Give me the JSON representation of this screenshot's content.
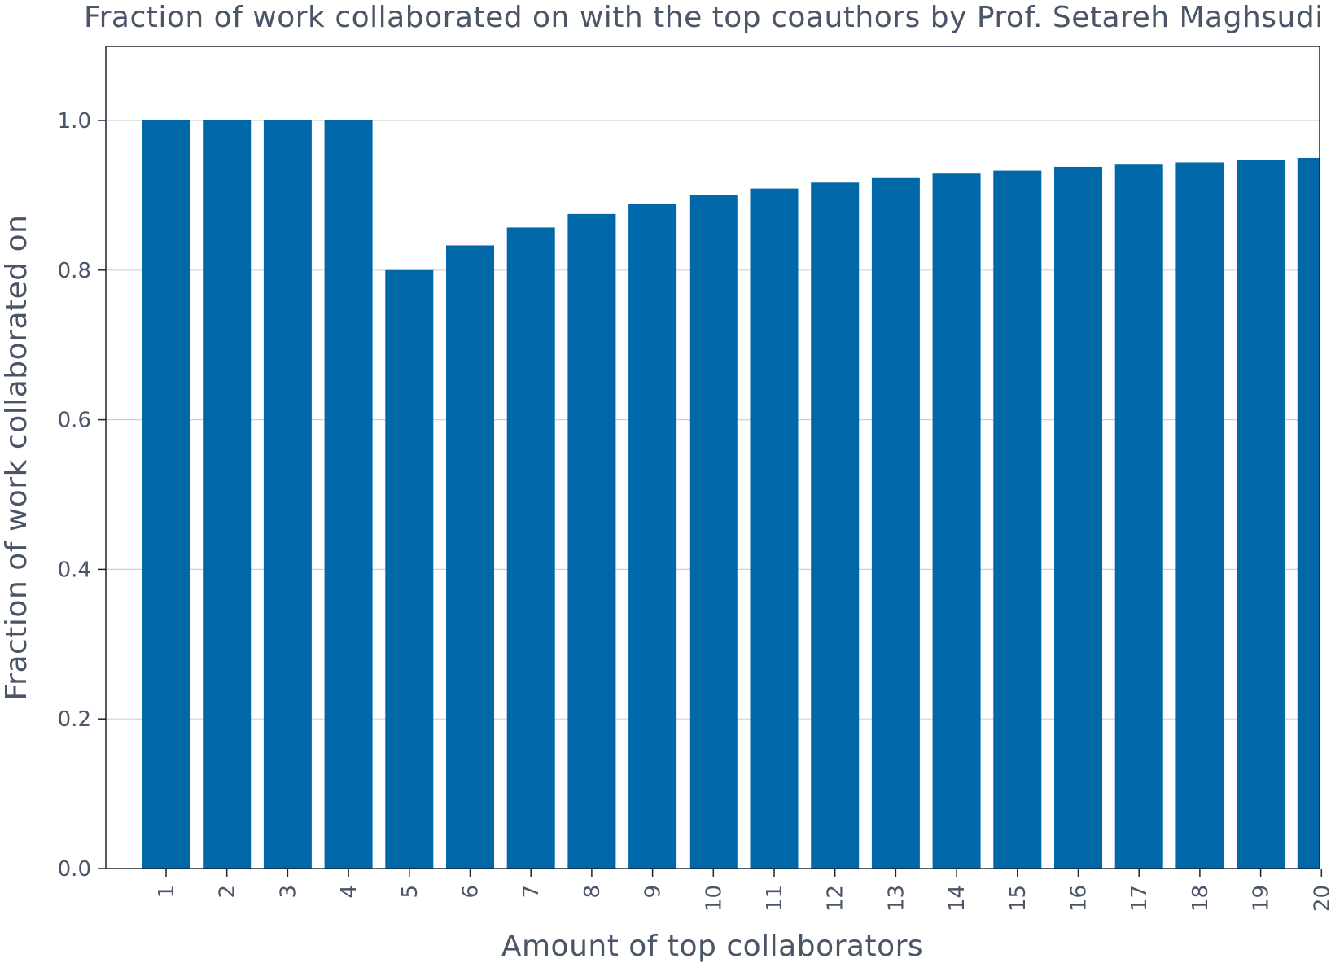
{
  "chart_data": {
    "type": "bar",
    "title": "Fraction of work collaborated on with the top coauthors by Prof. Setareh Maghsudi",
    "xlabel": "Amount of top collaborators",
    "ylabel": "Fraction of work collaborated on",
    "categories": [
      "1",
      "2",
      "3",
      "4",
      "5",
      "6",
      "7",
      "8",
      "9",
      "10",
      "11",
      "12",
      "13",
      "14",
      "15",
      "16",
      "17",
      "18",
      "19",
      "20"
    ],
    "values": [
      1.0,
      1.0,
      1.0,
      1.0,
      0.8,
      0.833,
      0.857,
      0.875,
      0.889,
      0.9,
      0.909,
      0.917,
      0.923,
      0.929,
      0.933,
      0.938,
      0.941,
      0.944,
      0.947,
      0.95
    ],
    "yticks": [
      "0.0",
      "0.2",
      "0.4",
      "0.6",
      "0.8",
      "1.0"
    ],
    "ylim": [
      0,
      1.1
    ],
    "grid": "horizontal",
    "bar_color": "#0068a9",
    "text_color": "#4a5568"
  }
}
